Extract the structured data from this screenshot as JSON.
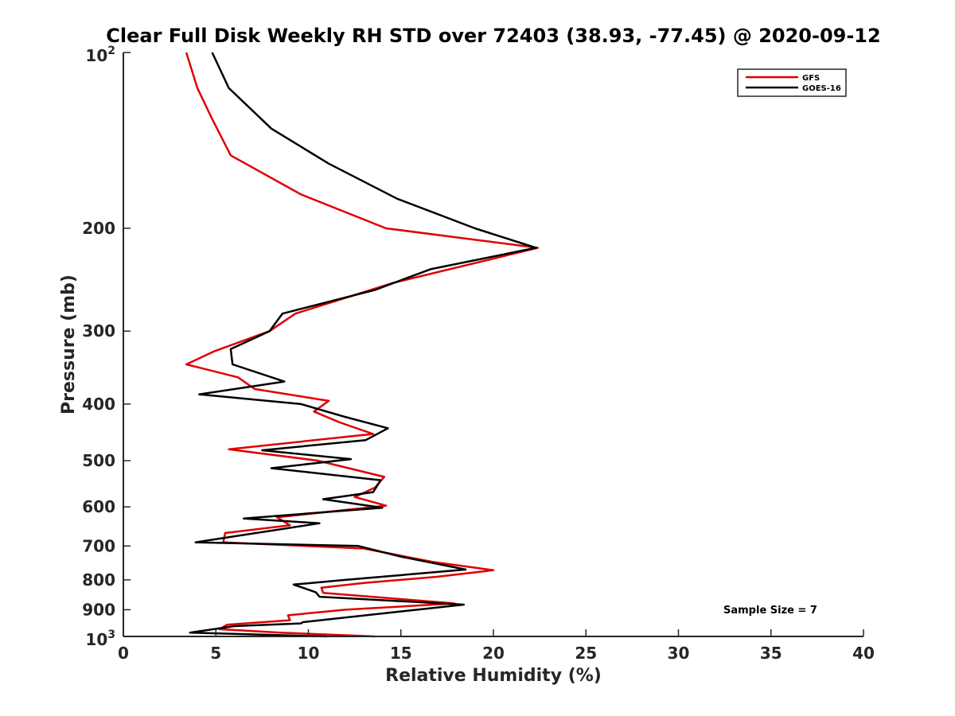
{
  "chart_data": {
    "type": "line",
    "title": "Clear Full Disk Weekly RH STD over 72403 (38.93, -77.45) @ 2020-09-12",
    "xlabel": "Relative Humidity (%)",
    "ylabel": "Pressure (mb)",
    "xlim": [
      0,
      40
    ],
    "ylim": [
      100,
      1000
    ],
    "y_scale": "log",
    "y_reversed": true,
    "grid": false,
    "legend_position": "top-right",
    "x_ticks": [
      0,
      5,
      10,
      15,
      20,
      25,
      30,
      35,
      40
    ],
    "x_tick_labels": [
      "0",
      "5",
      "10",
      "15",
      "20",
      "25",
      "30",
      "35",
      "40"
    ],
    "y_ticks": [
      100,
      200,
      300,
      400,
      500,
      600,
      700,
      800,
      900,
      1000
    ],
    "y_tick_labels": [
      "10^2",
      "200",
      "300",
      "400",
      "500",
      "600",
      "700",
      "800",
      "900",
      "10^3"
    ],
    "annotation": "Sample Size = 7",
    "series": [
      {
        "name": "GFS",
        "color": "#e00000",
        "points": [
          [
            3.4,
            100
          ],
          [
            4.0,
            115
          ],
          [
            4.8,
            130
          ],
          [
            5.8,
            150
          ],
          [
            9.6,
            175
          ],
          [
            14.2,
            200
          ],
          [
            22.4,
            216
          ],
          [
            14.6,
            248
          ],
          [
            9.3,
            280
          ],
          [
            7.9,
            300
          ],
          [
            4.9,
            325
          ],
          [
            3.4,
            342
          ],
          [
            6.2,
            360
          ],
          [
            7.1,
            377
          ],
          [
            11.1,
            395
          ],
          [
            10.3,
            412
          ],
          [
            11.7,
            430
          ],
          [
            13.5,
            450
          ],
          [
            5.7,
            478
          ],
          [
            10.5,
            500
          ],
          [
            14.1,
            533
          ],
          [
            13.6,
            556
          ],
          [
            12.5,
            577
          ],
          [
            14.2,
            597
          ],
          [
            8.3,
            625
          ],
          [
            9.0,
            645
          ],
          [
            5.5,
            665
          ],
          [
            5.4,
            690
          ],
          [
            13.0,
            707
          ],
          [
            16.7,
            745
          ],
          [
            20.0,
            770
          ],
          [
            17.0,
            790
          ],
          [
            13.0,
            810
          ],
          [
            10.7,
            825
          ],
          [
            10.8,
            842
          ],
          [
            17.9,
            878
          ],
          [
            12.0,
            900
          ],
          [
            8.9,
            920
          ],
          [
            9.0,
            938
          ],
          [
            5.6,
            955
          ],
          [
            5.2,
            972
          ],
          [
            8.5,
            985
          ],
          [
            13.6,
            1000
          ]
        ]
      },
      {
        "name": "GOES-16",
        "color": "#000000",
        "points": [
          [
            4.8,
            100
          ],
          [
            5.7,
            115
          ],
          [
            8.0,
            135
          ],
          [
            11.1,
            155
          ],
          [
            14.8,
            178
          ],
          [
            19.0,
            200
          ],
          [
            22.3,
            216
          ],
          [
            16.6,
            235
          ],
          [
            13.6,
            255
          ],
          [
            8.6,
            280
          ],
          [
            7.9,
            300
          ],
          [
            5.8,
            322
          ],
          [
            5.9,
            342
          ],
          [
            8.7,
            366
          ],
          [
            4.1,
            385
          ],
          [
            9.6,
            400
          ],
          [
            11.9,
            420
          ],
          [
            14.3,
            440
          ],
          [
            13.1,
            461
          ],
          [
            7.5,
            480
          ],
          [
            12.3,
            497
          ],
          [
            8.0,
            515
          ],
          [
            13.9,
            540
          ],
          [
            13.5,
            566
          ],
          [
            10.8,
            582
          ],
          [
            14.0,
            602
          ],
          [
            6.5,
            628
          ],
          [
            10.6,
            640
          ],
          [
            3.9,
            690
          ],
          [
            12.7,
            700
          ],
          [
            15.0,
            730
          ],
          [
            18.5,
            768
          ],
          [
            12.0,
            800
          ],
          [
            9.2,
            815
          ],
          [
            10.4,
            840
          ],
          [
            10.6,
            855
          ],
          [
            18.4,
            882
          ],
          [
            9.7,
            945
          ],
          [
            9.6,
            950
          ],
          [
            6.0,
            960
          ],
          [
            3.6,
            985
          ],
          [
            11.0,
            1000
          ]
        ]
      }
    ]
  }
}
